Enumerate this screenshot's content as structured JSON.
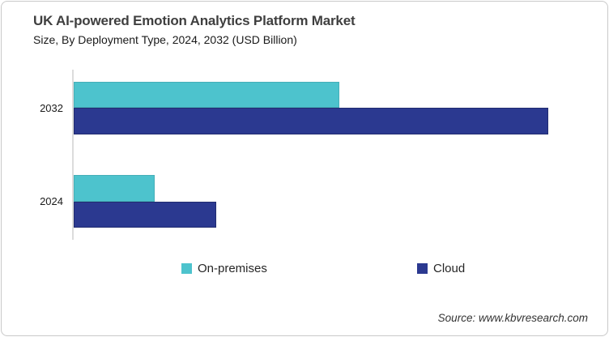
{
  "card": {
    "title": "UK AI-powered Emotion Analytics Platform Market",
    "subtitle": "Size, By Deployment Type, 2024, 2032 (USD Billion)",
    "source": "Source: www.kbvresearch.com"
  },
  "colors": {
    "on_premises": "#4DC3CD",
    "cloud": "#2B3990",
    "card_border": "#C9C9C9",
    "axis_line": "#DCDCDC",
    "title_text": "#3F3F3F",
    "body_text": "#1A1A1A"
  },
  "chart_data": {
    "type": "bar",
    "orientation": "horizontal",
    "title": "UK AI-powered Emotion Analytics Platform Market Size, By Deployment Type, 2024, 2032 (USD Billion)",
    "xlabel": "",
    "ylabel": "",
    "units": "USD Billion",
    "value_scale": "relative estimate — chart displays no numeric axis ticks or data labels; values normalized so Cloud 2032 = 1.0",
    "categories": [
      "2032",
      "2024"
    ],
    "series": [
      {
        "name": "On-premises",
        "color": "#4DC3CD",
        "values": [
          0.56,
          0.17
        ]
      },
      {
        "name": "Cloud",
        "color": "#2B3990",
        "values": [
          1.0,
          0.3
        ]
      }
    ],
    "xlim": [
      0,
      1.058
    ],
    "grid": false,
    "legend_position": "bottom"
  }
}
